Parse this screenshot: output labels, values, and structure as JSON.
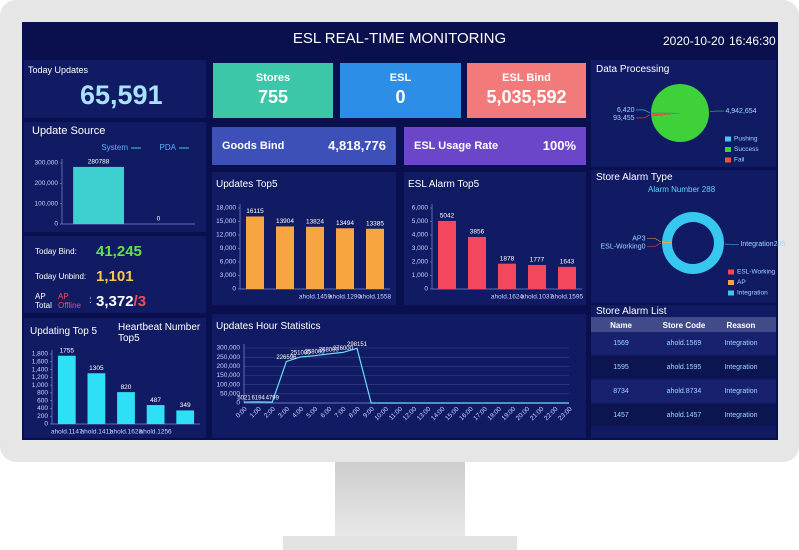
{
  "header": {
    "title": "ESL REAL-TIME MONITORING",
    "date": "2020-10-20",
    "time": "16:46:30"
  },
  "today_updates": {
    "label": "Today Updates",
    "value": "65,591"
  },
  "cards": [
    {
      "label": "Stores",
      "value": "755"
    },
    {
      "label": "ESL",
      "value": "0"
    },
    {
      "label": "ESL Bind",
      "value": "5,035,592"
    },
    {
      "label": "Goods Bind",
      "value": "4,818,776"
    },
    {
      "label": "ESL Usage Rate",
      "value": "100%"
    }
  ],
  "bind_stats": {
    "bind_label": "Today Bind:",
    "bind_value": "41,245",
    "unbind_label": "Today Unbind:",
    "unbind_value": "1,101",
    "ap_total_label": "AP Total",
    "ap_offline_label": "AP Offline",
    "ap_separator": ":",
    "ap_total_value": "3,372",
    "ap_offline_value": "/3"
  },
  "chart_data": [
    {
      "type": "bar",
      "title": "Update Source",
      "categories": [
        null
      ],
      "series": [
        {
          "name": "System",
          "color": "#3ecfd0",
          "values": [
            280788
          ]
        },
        {
          "name": "PDA",
          "color": "#3ecfd0",
          "values": [
            0
          ]
        }
      ],
      "ylim": [
        0,
        300000
      ],
      "yticks": [
        0,
        {
          "value": 100000,
          "label": "100,000"
        },
        {
          "value": 200000,
          "label": "200,000"
        },
        {
          "value": 300000,
          "label": "300,000"
        }
      ],
      "grid": false
    },
    {
      "type": "bar",
      "title": "Updating Top 5",
      "subtitle": "Heartbeat Number Top5",
      "categories": [
        "ahold.1147",
        "ahold.1411",
        "ahold.1628",
        "ahold.1256",
        null
      ],
      "values": [
        1755,
        1305,
        820,
        487,
        349
      ],
      "color": "#2ee0f5",
      "ylim": [
        0,
        1800
      ],
      "yticks": [
        0,
        200,
        400,
        600,
        800,
        {
          "value": 1000,
          "label": "1,000"
        },
        {
          "value": 1200,
          "label": "1,200"
        },
        {
          "value": 1400,
          "label": "1,400"
        },
        {
          "value": 1600,
          "label": "1,600"
        },
        {
          "value": 1800,
          "label": "1,800"
        }
      ],
      "grid": false
    },
    {
      "type": "bar",
      "title": "Updates Top5",
      "categories": [
        null,
        null,
        "ahold.1459",
        "ahold.1290",
        "ahold.1558"
      ],
      "values": [
        16115,
        13904,
        13824,
        13494,
        13385
      ],
      "color": "#f7a540",
      "ylim": [
        0,
        18000
      ],
      "yticks": [
        0,
        {
          "value": 3000,
          "label": "3,000"
        },
        {
          "value": 6000,
          "label": "6,000"
        },
        {
          "value": 9000,
          "label": "9,000"
        },
        {
          "value": 12000,
          "label": "12,000"
        },
        {
          "value": 15000,
          "label": "15,000"
        },
        {
          "value": 18000,
          "label": "18,000"
        }
      ],
      "grid": false
    },
    {
      "type": "bar",
      "title": "ESL Alarm Top5",
      "categories": [
        null,
        null,
        "ahold.1624",
        "ahold.1037",
        "ahold.1595"
      ],
      "values": [
        5042,
        3856,
        1878,
        1777,
        1643
      ],
      "color": "#f2475c",
      "ylim": [
        0,
        6000
      ],
      "yticks": [
        0,
        {
          "value": 1000,
          "label": "1,000"
        },
        {
          "value": 2000,
          "label": "2,000"
        },
        {
          "value": 3000,
          "label": "3,000"
        },
        {
          "value": 4000,
          "label": "4,000"
        },
        {
          "value": 5000,
          "label": "5,000"
        },
        {
          "value": 6000,
          "label": "6,000"
        }
      ],
      "grid": false
    },
    {
      "type": "line",
      "title": "Updates Hour Statistics",
      "categories": [
        "0:00",
        "1:00",
        "2:00",
        "3:00",
        "4:00",
        "5:00",
        "6:00",
        "7:00",
        "8:00",
        "9:00",
        "10:00",
        "11:00",
        "12:00",
        "13:00",
        "14:00",
        "15:00",
        "16:00",
        "17:00",
        "18:00",
        "19:00",
        "20:00",
        "21:00",
        "22:00",
        "23:00"
      ],
      "values": [
        5021,
        6194,
        4799,
        226596,
        251000,
        258000,
        268000,
        276000,
        298151,
        0,
        0,
        0,
        0,
        0,
        0,
        0,
        0,
        0,
        0,
        0,
        0,
        0,
        0,
        0
      ],
      "value_labels": [
        "5021",
        "6194",
        "4799",
        "226596",
        "251000",
        "258000",
        "268000",
        "276000",
        "298151",
        null,
        null,
        null,
        null,
        null,
        null,
        null,
        null,
        null,
        null,
        null,
        null,
        null,
        null,
        null
      ],
      "color": "#6cdcf5",
      "ylim": [
        0,
        300000
      ],
      "yticks": [
        0,
        {
          "value": 50000,
          "label": "50,000"
        },
        {
          "value": 100000,
          "label": "100,000"
        },
        {
          "value": 150000,
          "label": "150,000"
        },
        {
          "value": 200000,
          "label": "200,000"
        },
        {
          "value": 250000,
          "label": "250,000"
        },
        {
          "value": 300000,
          "label": "300,000"
        }
      ],
      "grid": true
    },
    {
      "type": "pie",
      "title": "Data Processing",
      "categories": [
        "Pushing",
        "Success",
        "Fail"
      ],
      "values": [
        6420,
        4942654,
        93455
      ],
      "value_labels": [
        "6,420",
        "4,942,654",
        "93,455"
      ],
      "colors": [
        "#4fc3f7",
        "#3ed13a",
        "#f0533a"
      ]
    },
    {
      "type": "donut",
      "title": "Store Alarm Type",
      "subtitle": "Alarm Number 288",
      "categories": [
        "ESL-Working",
        "AP",
        "Integration"
      ],
      "values": [
        0,
        3,
        285
      ],
      "colors": [
        "#f0475a",
        "#f5a442",
        "#37c8f0"
      ]
    }
  ],
  "store_alarm_list": {
    "title": "Store Alarm List",
    "columns": [
      "Name",
      "Store Code",
      "Reason"
    ],
    "rows": [
      [
        "1569",
        "ahold.1569",
        "Integration"
      ],
      [
        "1595",
        "ahold.1595",
        "Integration"
      ],
      [
        "8734",
        "ahold.8734",
        "Integration"
      ],
      [
        "1457",
        "ahold.1457",
        "Integration"
      ]
    ]
  }
}
